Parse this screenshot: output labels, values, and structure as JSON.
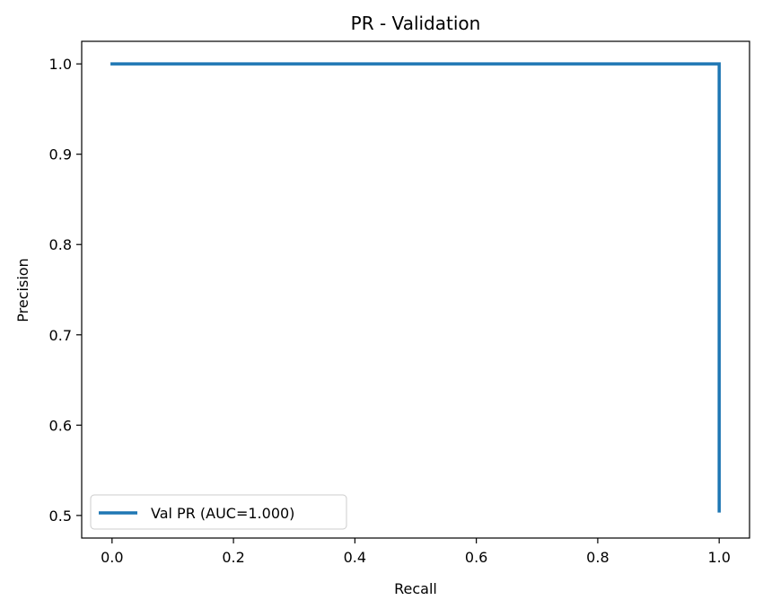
{
  "chart_data": {
    "type": "line",
    "title": "PR - Validation",
    "xlabel": "Recall",
    "ylabel": "Precision",
    "xlim": [
      -0.05,
      1.05
    ],
    "ylim": [
      0.475,
      1.025
    ],
    "xticks": [
      0.0,
      0.2,
      0.4,
      0.6,
      0.8,
      1.0
    ],
    "xtick_labels": [
      "0.0",
      "0.2",
      "0.4",
      "0.6",
      "0.8",
      "1.0"
    ],
    "yticks": [
      0.5,
      0.6,
      0.7,
      0.8,
      0.9,
      1.0
    ],
    "ytick_labels": [
      "0.5",
      "0.6",
      "0.7",
      "0.8",
      "0.9",
      "1.0"
    ],
    "grid": false,
    "legend_position": "lower-left",
    "series": [
      {
        "name": "Val PR (AUC=1.000)",
        "color": "#1f77b4",
        "x": [
          0.0,
          1.0,
          1.0
        ],
        "y": [
          1.0,
          1.0,
          0.505
        ]
      }
    ]
  }
}
